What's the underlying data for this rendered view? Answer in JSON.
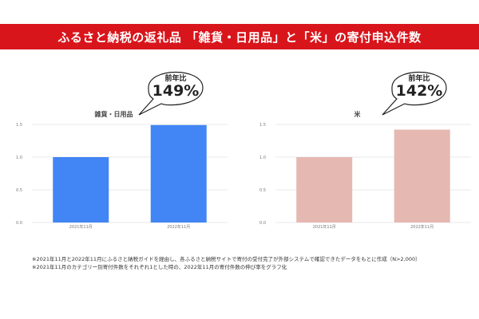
{
  "header": {
    "title": "ふるさと納税の返礼品 「雑貨・日用品」と「米」の寄付申込件数"
  },
  "colors": {
    "header_bg": "#d9151c",
    "bar_left": "#4285f4",
    "bar_right": "#e6b8b2",
    "grid": "#e0e0e0"
  },
  "chart_data": [
    {
      "type": "bar",
      "title": "雑貨・日用品",
      "categories": [
        "2021年11月",
        "2022年11月"
      ],
      "values": [
        1.0,
        1.49
      ],
      "ylim": [
        0,
        1.5
      ],
      "yticks": [
        "0.0",
        "0.5",
        "1.0",
        "1.5"
      ],
      "grid": true,
      "callout": {
        "label": "前年比",
        "value": "149%"
      }
    },
    {
      "type": "bar",
      "title": "米",
      "categories": [
        "2021年11月",
        "2022年11月"
      ],
      "values": [
        1.0,
        1.42
      ],
      "ylim": [
        0,
        1.5
      ],
      "yticks": [
        "0.0",
        "0.5",
        "1.0",
        "1.5"
      ],
      "grid": true,
      "callout": {
        "label": "前年比",
        "value": "142%"
      }
    }
  ],
  "notes": [
    "※2021年11月と2022年11月にふるさと納税ガイドを経由し、各ふるさと納税サイトで寄付の受付完了が外部システムで確認できたデータをもとに作成（N>2,000）",
    "※2021年11月のカテゴリー別寄付件数をそれぞれ1とした時の、2022年11月の寄付件数の伸び率をグラフ化"
  ]
}
